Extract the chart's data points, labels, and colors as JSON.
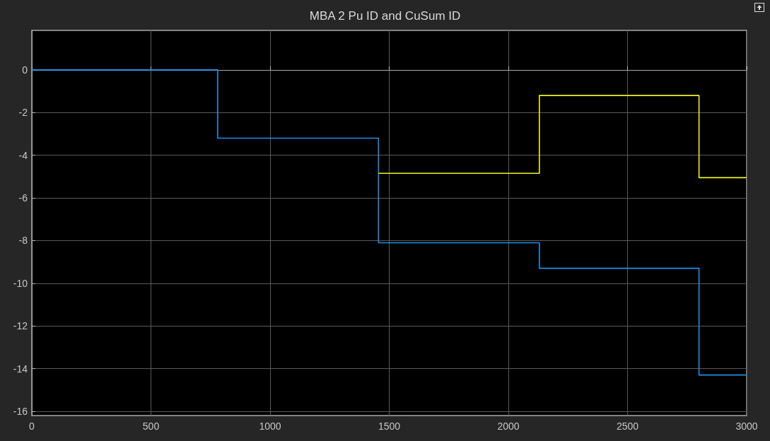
{
  "chart_data": {
    "type": "step",
    "title": "MBA 2 Pu ID and CuSum ID",
    "series": [
      {
        "color": "#1e8fe8",
        "x": [
          0,
          780,
          1455,
          2130,
          2800,
          3000
        ],
        "values": [
          0,
          -3.2,
          -8.1,
          -9.3,
          -14.3,
          -14.3
        ]
      },
      {
        "color": "#f2f21a",
        "x": [
          1455,
          2130,
          2800,
          3000
        ],
        "values": [
          -4.85,
          -1.2,
          -5.05,
          -5.05
        ]
      }
    ],
    "xlim": [
      0,
      3000
    ],
    "xticks": [
      0,
      500,
      1000,
      1500,
      2000,
      2500,
      3000
    ],
    "ylim": [
      -16.2,
      1.85
    ],
    "yticks": [
      0,
      -2,
      -4,
      -6,
      -8,
      -10,
      -12,
      -14,
      -16
    ],
    "grid": true,
    "marker": "none",
    "line_style": "solid"
  }
}
